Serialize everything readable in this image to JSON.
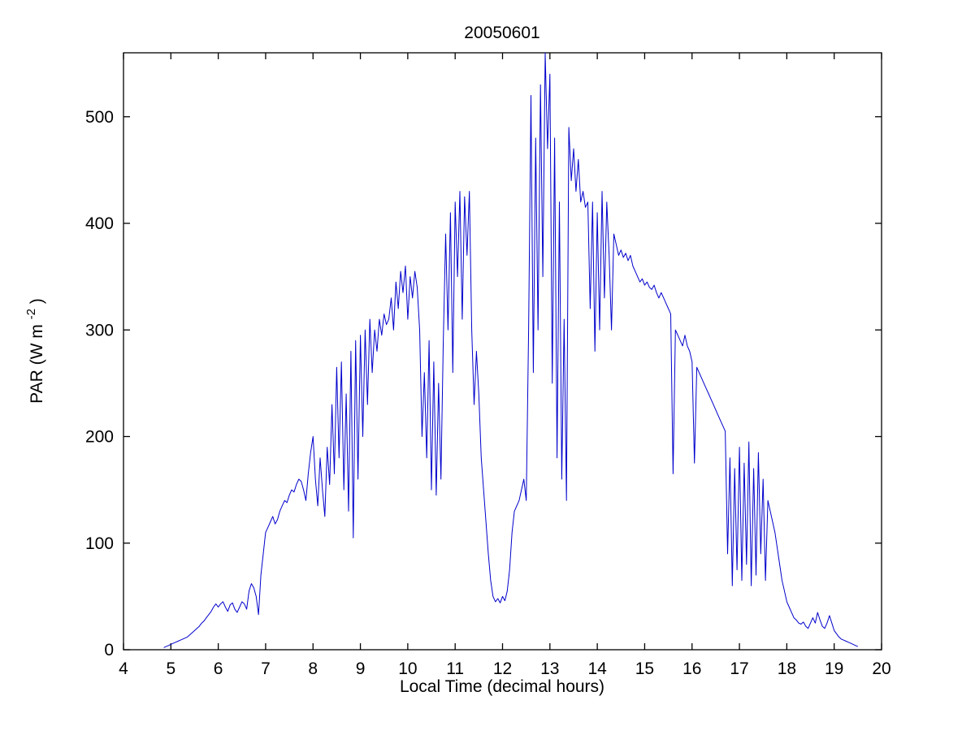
{
  "page": {
    "background_color": "#ffffff"
  },
  "chart_data": {
    "type": "line",
    "title": "20050601",
    "xlabel": "Local Time (decimal hours)",
    "ylabel_prefix": "PAR (W m",
    "ylabel_sup": "-2",
    "ylabel_suffix": ")",
    "xlim": [
      4,
      20
    ],
    "ylim": [
      0,
      560
    ],
    "x_ticks": [
      4,
      5,
      6,
      7,
      8,
      9,
      10,
      11,
      12,
      13,
      14,
      15,
      16,
      17,
      18,
      19,
      20
    ],
    "y_ticks": [
      0,
      100,
      200,
      300,
      400,
      500
    ],
    "grid": false,
    "legend": null,
    "line_color": "#0000CC",
    "axis_color": "#000000",
    "series": [
      {
        "name": "PAR",
        "x_start": 4.85,
        "x_step": 0.05,
        "values": [
          2,
          3,
          4,
          5,
          6,
          7,
          8,
          9,
          10,
          11,
          12,
          14,
          16,
          18,
          20,
          22,
          25,
          27,
          30,
          33,
          36,
          40,
          43,
          40,
          43,
          45,
          40,
          36,
          42,
          44,
          38,
          35,
          40,
          45,
          43,
          38,
          55,
          62,
          58,
          50,
          33,
          70,
          90,
          110,
          115,
          120,
          125,
          118,
          122,
          130,
          135,
          140,
          138,
          145,
          150,
          148,
          155,
          160,
          158,
          150,
          140,
          165,
          185,
          200,
          160,
          135,
          180,
          150,
          125,
          190,
          155,
          230,
          165,
          265,
          180,
          270,
          150,
          240,
          130,
          280,
          105,
          290,
          160,
          295,
          200,
          300,
          230,
          310,
          260,
          300,
          280,
          310,
          295,
          315,
          305,
          310,
          330,
          300,
          345,
          320,
          355,
          335,
          360,
          310,
          350,
          330,
          355,
          340,
          300,
          200,
          260,
          180,
          290,
          150,
          270,
          145,
          250,
          160,
          290,
          390,
          300,
          410,
          260,
          420,
          350,
          430,
          310,
          425,
          370,
          430,
          300,
          230,
          280,
          240,
          180,
          150,
          120,
          90,
          65,
          50,
          45,
          48,
          44,
          50,
          46,
          55,
          75,
          110,
          130,
          135,
          140,
          150,
          160,
          140,
          300,
          520,
          260,
          480,
          300,
          530,
          350,
          560,
          470,
          540,
          250,
          480,
          180,
          420,
          160,
          310,
          140,
          490,
          440,
          470,
          430,
          460,
          420,
          430,
          415,
          420,
          320,
          420,
          280,
          410,
          300,
          430,
          330,
          420,
          370,
          300,
          390,
          380,
          370,
          375,
          368,
          372,
          365,
          370,
          360,
          355,
          350,
          345,
          348,
          342,
          345,
          340,
          338,
          342,
          335,
          330,
          335,
          330,
          325,
          320,
          315,
          165,
          300,
          295,
          290,
          285,
          295,
          285,
          280,
          270,
          175,
          265,
          260,
          255,
          250,
          245,
          240,
          235,
          230,
          225,
          220,
          215,
          210,
          205,
          90,
          180,
          60,
          170,
          75,
          190,
          65,
          175,
          80,
          195,
          60,
          170,
          70,
          185,
          90,
          160,
          65,
          140,
          130,
          120,
          110,
          95,
          80,
          65,
          55,
          45,
          40,
          35,
          30,
          28,
          25,
          24,
          26,
          22,
          20,
          25,
          30,
          25,
          35,
          28,
          22,
          20,
          25,
          32,
          25,
          18,
          15,
          12,
          10,
          9,
          8,
          7,
          6,
          5,
          4,
          3
        ]
      }
    ]
  }
}
